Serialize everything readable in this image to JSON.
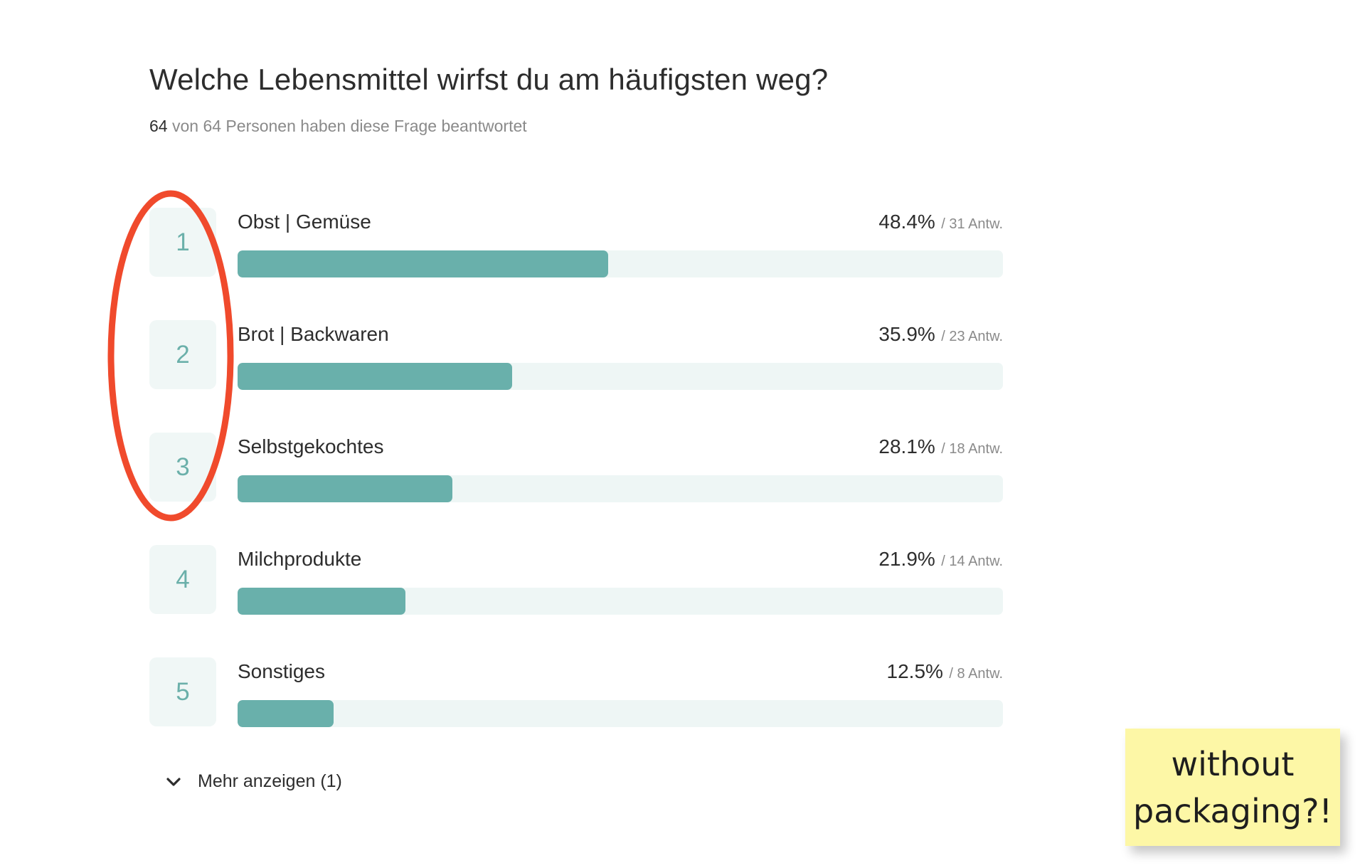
{
  "question": {
    "title": "Welche Lebensmittel wirfst du am häufigsten weg?",
    "answered_count": "64",
    "respondents_rest": " von 64 Personen haben diese Frage beantwortet"
  },
  "options": [
    {
      "rank": "1",
      "label": "Obst | Gemüse",
      "percent_text": "48.4%",
      "count_text": "/ 31 Antw.",
      "percent": 48.4
    },
    {
      "rank": "2",
      "label": "Brot | Backwaren",
      "percent_text": "35.9%",
      "count_text": "/ 23 Antw.",
      "percent": 35.9
    },
    {
      "rank": "3",
      "label": "Selbstgekochtes",
      "percent_text": "28.1%",
      "count_text": "/ 18 Antw.",
      "percent": 28.1
    },
    {
      "rank": "4",
      "label": "Milchprodukte",
      "percent_text": "21.9%",
      "count_text": "/ 14 Antw.",
      "percent": 21.9
    },
    {
      "rank": "5",
      "label": "Sonstiges",
      "percent_text": "12.5%",
      "count_text": "/ 8 Antw.",
      "percent": 12.5
    }
  ],
  "more_toggle": {
    "label": "Mehr anzeigen (1)",
    "icon": "chevron-down-icon"
  },
  "sticky_note": {
    "line1": "without",
    "line2": "packaging?!"
  },
  "colors": {
    "bar_fill": "#69b0ab",
    "bar_track": "#eef6f5",
    "rank_bg": "#f0f7f6",
    "rank_text": "#6bb0aa",
    "annotation": "#f04a2c",
    "sticky": "#fdf7a6"
  }
}
